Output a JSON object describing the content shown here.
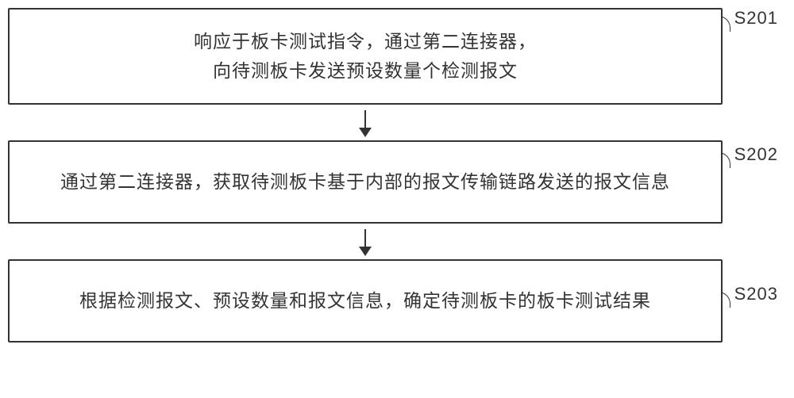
{
  "flowchart": {
    "type": "flowchart",
    "background_color": "#ffffff",
    "border_color": "#333333",
    "text_color": "#333333",
    "font_size": 23,
    "label_font_size": 22,
    "border_width": 2,
    "steps": [
      {
        "id": "S201",
        "text_line1": "响应于板卡测试指令，通过第二连接器，",
        "text_line2": "向待测板卡发送预设数量个检测报文"
      },
      {
        "id": "S202",
        "text_line1": "通过第二连接器，获取待测板卡基于内部的报文传输链路发送的报文信息"
      },
      {
        "id": "S203",
        "text_line1": "根据检测报文、预设数量和报文信息，确定待测板卡的板卡测试结果"
      }
    ]
  }
}
